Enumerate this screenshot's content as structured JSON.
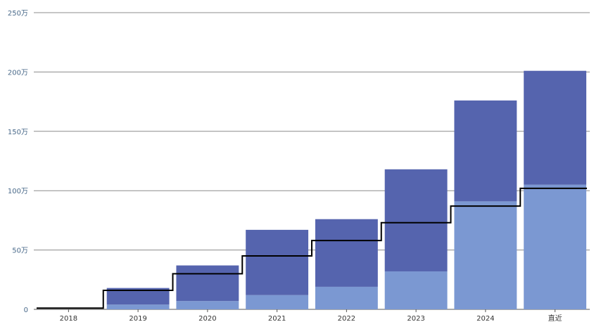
{
  "chart_data": {
    "type": "bar",
    "stacked": true,
    "categories": [
      "2018",
      "2019",
      "2020",
      "2021",
      "2022",
      "2023",
      "2024",
      "直近"
    ],
    "series": [
      {
        "values": [
          0,
          4,
          7,
          12,
          19,
          32,
          91,
          105
        ],
        "color": "#7b98d2"
      },
      {
        "values": [
          0,
          14,
          30,
          55,
          57,
          86,
          85,
          96
        ],
        "color": "#5564ae"
      }
    ],
    "line": {
      "values": [
        1,
        16,
        30,
        45,
        58,
        73,
        87,
        102
      ],
      "color": "#000000",
      "style": "step"
    },
    "y_ticks": [
      "0",
      "50万",
      "100万",
      "150万",
      "200万",
      "250万"
    ],
    "ylim": [
      0,
      250
    ],
    "grid": true,
    "legend": "none"
  }
}
